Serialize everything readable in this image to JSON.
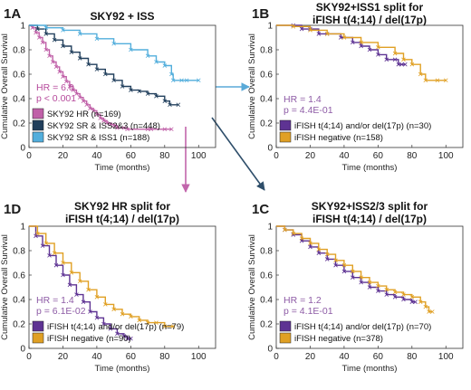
{
  "colors": {
    "magenta": "#C060A8",
    "navy": "#213F5C",
    "lightblue": "#52AEDC",
    "purple": "#5E3393",
    "orange": "#E0A024",
    "hr_magenta": "#B64A9C",
    "hr_purple": "#8E5CA6",
    "arrow_blue": "#5AAAD8",
    "arrow_magenta": "#C266AC",
    "arrow_navy": "#2E4E6A"
  },
  "chart_data": [
    {
      "id": "1A",
      "type": "line",
      "subtype": "kaplan-meier",
      "panel_letter": "1A",
      "title_lines": [
        "SKY92 + ISS"
      ],
      "xlabel": "Time (months)",
      "ylabel": "Cumulative Overall Survival",
      "xlim": [
        0,
        110
      ],
      "ylim": [
        0,
        1
      ],
      "xticks": [
        0,
        20,
        40,
        60,
        80,
        100
      ],
      "yticks": [
        0,
        0.2,
        0.4,
        0.6,
        0.8,
        1
      ],
      "xtick_labels": [
        "0",
        "20",
        "40",
        "60",
        "80",
        "100"
      ],
      "ytick_labels": [
        "0",
        "0.2",
        "0.4",
        "0.6",
        "0.8",
        "1"
      ],
      "hr_text": [
        "HR = 6.0",
        "p < 0.001"
      ],
      "hr_color": "#B64A9C",
      "legend_position": "bottom-left",
      "series": [
        {
          "name": "SKY92 HR (n=169)",
          "color": "#C060A8",
          "points": [
            [
              0,
              1
            ],
            [
              2,
              0.98
            ],
            [
              4,
              0.94
            ],
            [
              6,
              0.9
            ],
            [
              8,
              0.86
            ],
            [
              10,
              0.8
            ],
            [
              12,
              0.75
            ],
            [
              14,
              0.7
            ],
            [
              16,
              0.66
            ],
            [
              18,
              0.62
            ],
            [
              20,
              0.58
            ],
            [
              22,
              0.54
            ],
            [
              24,
              0.5
            ],
            [
              26,
              0.47
            ],
            [
              28,
              0.44
            ],
            [
              30,
              0.41
            ],
            [
              32,
              0.38
            ],
            [
              34,
              0.35
            ],
            [
              36,
              0.32
            ],
            [
              38,
              0.3
            ],
            [
              40,
              0.27
            ],
            [
              42,
              0.24
            ],
            [
              44,
              0.22
            ],
            [
              46,
              0.2
            ],
            [
              48,
              0.19
            ],
            [
              50,
              0.18
            ],
            [
              52,
              0.16
            ],
            [
              56,
              0.16
            ],
            [
              58,
              0.15
            ],
            [
              70,
              0.15
            ],
            [
              72,
              0.15
            ],
            [
              80,
              0.15
            ],
            [
              84,
              0.15
            ]
          ]
        },
        {
          "name": "SKY92 SR & ISS2&3 (n=448)",
          "color": "#213F5C",
          "points": [
            [
              0,
              1
            ],
            [
              5,
              0.97
            ],
            [
              10,
              0.93
            ],
            [
              15,
              0.88
            ],
            [
              20,
              0.83
            ],
            [
              25,
              0.78
            ],
            [
              30,
              0.73
            ],
            [
              35,
              0.68
            ],
            [
              40,
              0.64
            ],
            [
              45,
              0.6
            ],
            [
              50,
              0.55
            ],
            [
              55,
              0.5
            ],
            [
              60,
              0.47
            ],
            [
              65,
              0.46
            ],
            [
              70,
              0.44
            ],
            [
              75,
              0.42
            ],
            [
              80,
              0.38
            ],
            [
              83,
              0.35
            ],
            [
              88,
              0.35
            ]
          ]
        },
        {
          "name": "SKY92 SR & ISS1 (n=188)",
          "color": "#52AEDC",
          "points": [
            [
              0,
              1
            ],
            [
              10,
              0.98
            ],
            [
              20,
              0.96
            ],
            [
              30,
              0.93
            ],
            [
              40,
              0.89
            ],
            [
              50,
              0.85
            ],
            [
              60,
              0.8
            ],
            [
              70,
              0.75
            ],
            [
              75,
              0.7
            ],
            [
              80,
              0.67
            ],
            [
              84,
              0.6
            ],
            [
              85,
              0.55
            ],
            [
              90,
              0.55
            ],
            [
              93,
              0.55
            ],
            [
              100,
              0.55
            ]
          ]
        }
      ]
    },
    {
      "id": "1B",
      "type": "line",
      "subtype": "kaplan-meier",
      "panel_letter": "1B",
      "title_lines": [
        "SKY92+ISS1 split for",
        "iFISH t(4;14) / del(17p)"
      ],
      "xlabel": "Time (months)",
      "ylabel": "Cumulative Overall Survival",
      "xlim": [
        0,
        110
      ],
      "ylim": [
        0,
        1
      ],
      "xticks": [
        0,
        20,
        40,
        60,
        80,
        100
      ],
      "yticks": [
        0,
        0.2,
        0.4,
        0.6,
        0.8,
        1
      ],
      "xtick_labels": [
        "0",
        "20",
        "40",
        "60",
        "80",
        "100"
      ],
      "ytick_labels": [
        "0",
        "0.2",
        "0.4",
        "0.6",
        "0.8",
        "1"
      ],
      "hr_text": [
        "HR = 1.4",
        "p = 4.4E-01"
      ],
      "hr_color": "#8E5CA6",
      "legend_position": "bottom-left",
      "series": [
        {
          "name": "iFISH t(4;14) and/or del(17p) (n=30)",
          "color": "#5E3393",
          "points": [
            [
              0,
              1
            ],
            [
              10,
              1
            ],
            [
              15,
              0.97
            ],
            [
              20,
              0.97
            ],
            [
              25,
              0.93
            ],
            [
              30,
              0.93
            ],
            [
              38,
              0.9
            ],
            [
              45,
              0.86
            ],
            [
              50,
              0.83
            ],
            [
              55,
              0.8
            ],
            [
              60,
              0.76
            ],
            [
              65,
              0.72
            ],
            [
              70,
              0.72
            ],
            [
              72,
              0.68
            ],
            [
              74,
              0.68
            ],
            [
              76,
              0.68
            ]
          ]
        },
        {
          "name": "iFISH negative (n=158)",
          "color": "#E0A024",
          "points": [
            [
              0,
              1
            ],
            [
              10,
              0.99
            ],
            [
              20,
              0.96
            ],
            [
              30,
              0.93
            ],
            [
              40,
              0.9
            ],
            [
              50,
              0.86
            ],
            [
              60,
              0.82
            ],
            [
              70,
              0.77
            ],
            [
              75,
              0.72
            ],
            [
              80,
              0.68
            ],
            [
              85,
              0.6
            ],
            [
              88,
              0.55
            ],
            [
              95,
              0.55
            ],
            [
              100,
              0.55
            ]
          ]
        }
      ]
    },
    {
      "id": "1D",
      "type": "line",
      "subtype": "kaplan-meier",
      "panel_letter": "1D",
      "title_lines": [
        "SKY92 HR split for",
        "iFISH t(4;14) / del(17p)"
      ],
      "xlabel": "Time (months)",
      "ylabel": "Cumulative Overall Survival",
      "xlim": [
        0,
        110
      ],
      "ylim": [
        0,
        1
      ],
      "xticks": [
        0,
        20,
        40,
        60,
        80,
        100
      ],
      "yticks": [
        0,
        0.2,
        0.4,
        0.6,
        0.8,
        1
      ],
      "xtick_labels": [
        "0",
        "20",
        "40",
        "60",
        "80",
        "100"
      ],
      "ytick_labels": [
        "0",
        "0.2",
        "0.4",
        "0.6",
        "0.8",
        "1"
      ],
      "hr_text": [
        "HR = 1.4",
        "p = 6.1E-02"
      ],
      "hr_color": "#8E5CA6",
      "legend_position": "bottom-left",
      "series": [
        {
          "name": "iFISH t(4;14) and/or del(17p) (n=79)",
          "color": "#5E3393",
          "points": [
            [
              0,
              1
            ],
            [
              4,
              0.92
            ],
            [
              8,
              0.84
            ],
            [
              12,
              0.76
            ],
            [
              16,
              0.68
            ],
            [
              20,
              0.6
            ],
            [
              24,
              0.52
            ],
            [
              28,
              0.44
            ],
            [
              32,
              0.38
            ],
            [
              36,
              0.3
            ],
            [
              40,
              0.25
            ],
            [
              44,
              0.2
            ],
            [
              48,
              0.16
            ],
            [
              52,
              0.12
            ],
            [
              56,
              0.1
            ],
            [
              58,
              0.08
            ],
            [
              60,
              0.08
            ]
          ]
        },
        {
          "name": "iFISH negative (n=90)",
          "color": "#E0A024",
          "points": [
            [
              0,
              1
            ],
            [
              5,
              0.94
            ],
            [
              10,
              0.86
            ],
            [
              15,
              0.78
            ],
            [
              20,
              0.7
            ],
            [
              25,
              0.62
            ],
            [
              30,
              0.55
            ],
            [
              35,
              0.48
            ],
            [
              40,
              0.42
            ],
            [
              45,
              0.36
            ],
            [
              50,
              0.32
            ],
            [
              55,
              0.28
            ],
            [
              60,
              0.26
            ],
            [
              65,
              0.23
            ],
            [
              70,
              0.21
            ],
            [
              75,
              0.21
            ],
            [
              80,
              0.18
            ],
            [
              85,
              0.18
            ]
          ]
        }
      ]
    },
    {
      "id": "1C",
      "type": "line",
      "subtype": "kaplan-meier",
      "panel_letter": "1C",
      "title_lines": [
        "SKY92+ISS2/3 split for",
        "iFISH t(4;14) / del(17p)"
      ],
      "xlabel": "Time (months)",
      "ylabel": "Cumulative Overall Survival",
      "xlim": [
        0,
        110
      ],
      "ylim": [
        0,
        1
      ],
      "xticks": [
        0,
        20,
        40,
        60,
        80,
        100
      ],
      "yticks": [
        0,
        0.2,
        0.4,
        0.6,
        0.8,
        1
      ],
      "xtick_labels": [
        "0",
        "20",
        "40",
        "60",
        "80",
        "100"
      ],
      "ytick_labels": [
        "0",
        "0.2",
        "0.4",
        "0.6",
        "0.8",
        "1"
      ],
      "hr_text": [
        "HR = 1.2",
        "p = 4.1E-01"
      ],
      "hr_color": "#8E5CA6",
      "legend_position": "bottom-left",
      "series": [
        {
          "name": "iFISH t(4;14) and/or del(17p) (n=70)",
          "color": "#5E3393",
          "points": [
            [
              0,
              1
            ],
            [
              5,
              0.97
            ],
            [
              10,
              0.93
            ],
            [
              15,
              0.88
            ],
            [
              20,
              0.83
            ],
            [
              25,
              0.78
            ],
            [
              30,
              0.73
            ],
            [
              35,
              0.68
            ],
            [
              40,
              0.63
            ],
            [
              45,
              0.58
            ],
            [
              50,
              0.54
            ],
            [
              55,
              0.5
            ],
            [
              60,
              0.47
            ],
            [
              65,
              0.44
            ],
            [
              70,
              0.42
            ],
            [
              75,
              0.4
            ],
            [
              80,
              0.38
            ],
            [
              82,
              0.38
            ]
          ]
        },
        {
          "name": "iFISH negative (n=378)",
          "color": "#E0A024",
          "points": [
            [
              0,
              1
            ],
            [
              5,
              0.97
            ],
            [
              10,
              0.94
            ],
            [
              15,
              0.9
            ],
            [
              20,
              0.86
            ],
            [
              25,
              0.81
            ],
            [
              30,
              0.77
            ],
            [
              35,
              0.72
            ],
            [
              40,
              0.68
            ],
            [
              45,
              0.63
            ],
            [
              50,
              0.58
            ],
            [
              55,
              0.54
            ],
            [
              60,
              0.51
            ],
            [
              65,
              0.48
            ],
            [
              70,
              0.46
            ],
            [
              75,
              0.44
            ],
            [
              80,
              0.42
            ],
            [
              85,
              0.38
            ],
            [
              88,
              0.34
            ],
            [
              90,
              0.3
            ],
            [
              92,
              0.3
            ]
          ]
        }
      ]
    }
  ]
}
